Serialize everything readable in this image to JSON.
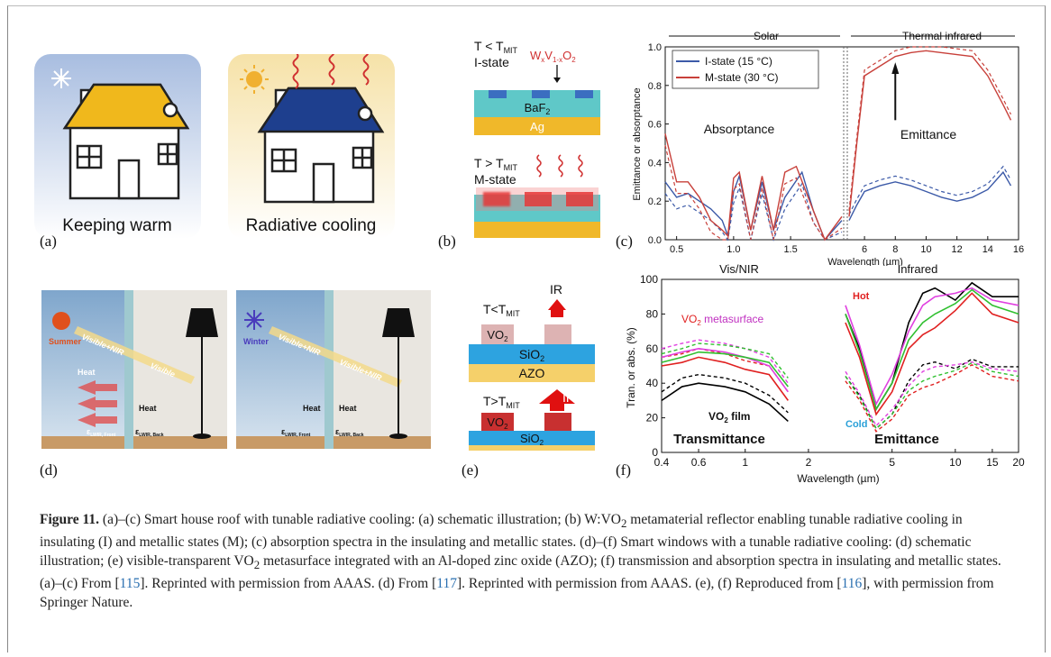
{
  "panels": {
    "a": {
      "label": "(a)",
      "title": "Keeping warm"
    },
    "a2": {
      "title": "Radiative cooling"
    },
    "b": {
      "label": "(b)",
      "top_condition": "T < T",
      "top_condition_sub": "MIT",
      "top_state": "I-state",
      "material_main": "W",
      "material_sub1": "x",
      "material_v": "V",
      "material_sub2": "1-x",
      "material_o": "O",
      "material_sub3": "2",
      "layer_baf": "BaF",
      "layer_baf_sub": "2",
      "layer_ag": "Ag",
      "bottom_condition": "T > T",
      "bottom_condition_sub": "MIT",
      "bottom_state": "M-state"
    },
    "c": {
      "label": "(c)",
      "region_solar": "Solar",
      "region_ir": "Thermal infrared",
      "legend_i": "I-state   (15 °C)",
      "legend_m": "M-state (30 °C)",
      "text_absorptance": "Absorptance",
      "text_emittance": "Emittance",
      "ylabel": "Emittance or absorptance",
      "xlabel": "Wavelength (µm)"
    },
    "d": {
      "label": "(d)",
      "summer": "Summer",
      "winter": "Winter",
      "visnir": "Visible+NIR",
      "visible": "Visible",
      "heat": "Heat",
      "lwir_front": "LWIR, Front",
      "lwir_back": "LWIR, Back",
      "eps": "ε"
    },
    "e": {
      "label": "(e)",
      "top_cond": "T<T",
      "top_cond_sub": "MIT",
      "ir": "IR",
      "vo2": "VO",
      "vo2_sub": "2",
      "sio2": "SiO",
      "sio2_sub": "2",
      "azo": "AZO",
      "bottom_cond": "T>T",
      "bottom_cond_sub": "MIT"
    },
    "f": {
      "label": "(f)",
      "region_vis": "Vis/NIR",
      "region_ir": "Infrared",
      "hot": "Hot",
      "cold": "Cold",
      "meta_label_vo": "VO",
      "meta_label_sub": "2",
      "meta_label_rest": " metasurface",
      "film_label": "VO",
      "film_sub": "2",
      "film_rest": " film",
      "transmittance": "Transmittance",
      "emittance": "Emittance",
      "ylabel": "Tran. or abs.  (%)",
      "xlabel": "Wavelength (µm)"
    }
  },
  "caption": {
    "fig": "Figure 11.",
    "text1": " (a)–(c) Smart house roof with tunable radiative cooling: (a) schematic illustration; (b) W:VO",
    "sub1": "2",
    "text2": " metamaterial reflector enabling tunable radiative cooling in insulating (I) and metallic states (M); (c) absorption spectra in the insulating and metallic states. (d)–(f) Smart windows with a tunable radiative cooling: (d) schematic illustration; (e) visible-transparent VO",
    "sub2": "2",
    "text3": " metasurface integrated with an Al-doped zinc oxide (AZO); (f) transmission and absorption spectra in insulating and metallic states. (a)–(c) From [",
    "ref1": "115",
    "text4": "]. Reprinted with permission from AAAS. (d) From [",
    "ref2": "117",
    "text5": "]. Reprinted with permission from AAAS. (e), (f) Reproduced from [",
    "ref3": "116",
    "text6": "], with permission from Springer Nature."
  },
  "chart_data": [
    {
      "type": "line",
      "panel": "c",
      "x_segments": [
        {
          "range": [
            0.4,
            1.95
          ],
          "ticks": [
            0.5,
            1.0,
            1.5
          ]
        },
        {
          "range": [
            5.0,
            16.0
          ],
          "ticks": [
            6,
            8,
            10,
            12,
            14,
            16
          ]
        }
      ],
      "ylim": [
        0,
        1.0
      ],
      "yticks": [
        0.0,
        0.2,
        0.4,
        0.6,
        0.8,
        1.0
      ],
      "xlabel": "Wavelength (µm)",
      "ylabel": "Emittance or absorptance",
      "legend": "top-left",
      "series": [
        {
          "name": "I-state   (15 °C)",
          "color": "#3c5aa8",
          "solar": [
            [
              0.4,
              0.3
            ],
            [
              0.5,
              0.22
            ],
            [
              0.6,
              0.24
            ],
            [
              0.7,
              0.2
            ],
            [
              0.8,
              0.16
            ],
            [
              0.9,
              0.1
            ],
            [
              0.95,
              0.02
            ],
            [
              1.0,
              0.25
            ],
            [
              1.05,
              0.33
            ],
            [
              1.15,
              0.05
            ],
            [
              1.25,
              0.3
            ],
            [
              1.35,
              0.05
            ],
            [
              1.45,
              0.22
            ],
            [
              1.6,
              0.35
            ],
            [
              1.7,
              0.15
            ],
            [
              1.8,
              0.0
            ],
            [
              1.95,
              0.1
            ]
          ],
          "ir": [
            [
              5.0,
              0.1
            ],
            [
              5.5,
              0.18
            ],
            [
              6,
              0.25
            ],
            [
              7,
              0.28
            ],
            [
              8,
              0.3
            ],
            [
              9,
              0.28
            ],
            [
              10,
              0.25
            ],
            [
              11,
              0.22
            ],
            [
              12,
              0.2
            ],
            [
              13,
              0.22
            ],
            [
              14,
              0.26
            ],
            [
              15,
              0.35
            ],
            [
              15.5,
              0.28
            ]
          ]
        },
        {
          "name": "M-state (30 °C)",
          "color": "#c8403a",
          "solar": [
            [
              0.4,
              0.55
            ],
            [
              0.5,
              0.3
            ],
            [
              0.6,
              0.3
            ],
            [
              0.7,
              0.22
            ],
            [
              0.8,
              0.1
            ],
            [
              0.9,
              0.05
            ],
            [
              0.95,
              0.02
            ],
            [
              1.0,
              0.32
            ],
            [
              1.05,
              0.35
            ],
            [
              1.15,
              0.05
            ],
            [
              1.25,
              0.33
            ],
            [
              1.35,
              0.05
            ],
            [
              1.45,
              0.35
            ],
            [
              1.55,
              0.38
            ],
            [
              1.7,
              0.15
            ],
            [
              1.8,
              0.0
            ],
            [
              1.95,
              0.12
            ]
          ],
          "ir": [
            [
              5.0,
              0.12
            ],
            [
              5.5,
              0.5
            ],
            [
              6,
              0.85
            ],
            [
              7,
              0.9
            ],
            [
              8,
              0.95
            ],
            [
              9,
              0.97
            ],
            [
              10,
              0.98
            ],
            [
              11,
              0.97
            ],
            [
              12,
              0.96
            ],
            [
              13,
              0.95
            ],
            [
              14,
              0.85
            ],
            [
              15,
              0.7
            ],
            [
              15.5,
              0.62
            ]
          ]
        }
      ]
    },
    {
      "type": "line",
      "panel": "f",
      "xscale": "log",
      "xlim": [
        0.4,
        20
      ],
      "xticks": [
        0.4,
        0.6,
        1,
        2,
        5,
        10,
        15,
        20
      ],
      "ylim": [
        0,
        100
      ],
      "yticks": [
        0,
        20,
        40,
        60,
        80,
        100
      ],
      "xlabel": "Wavelength (µm)",
      "ylabel": "Tran. or abs.  (%)",
      "series": [
        {
          "name": "VO2 film",
          "color": "#000000",
          "vis": [
            [
              0.4,
              30
            ],
            [
              0.5,
              38
            ],
            [
              0.6,
              40
            ],
            [
              0.8,
              38
            ],
            [
              1,
              35
            ],
            [
              1.3,
              28
            ],
            [
              1.6,
              18
            ]
          ],
          "ir": [
            [
              3,
              80
            ],
            [
              3.5,
              60
            ],
            [
              4.2,
              25
            ],
            [
              5,
              40
            ],
            [
              6,
              75
            ],
            [
              7,
              92
            ],
            [
              8,
              95
            ],
            [
              10,
              88
            ],
            [
              12,
              98
            ],
            [
              15,
              90
            ],
            [
              20,
              90
            ]
          ]
        },
        {
          "name": "VO2 metasurface (red)",
          "color": "#e02020",
          "vis": [
            [
              0.4,
              50
            ],
            [
              0.5,
              52
            ],
            [
              0.6,
              55
            ],
            [
              0.8,
              52
            ],
            [
              1,
              48
            ],
            [
              1.3,
              45
            ],
            [
              1.6,
              30
            ]
          ],
          "ir": [
            [
              3,
              75
            ],
            [
              3.5,
              55
            ],
            [
              4.2,
              22
            ],
            [
              5,
              35
            ],
            [
              6,
              60
            ],
            [
              7,
              68
            ],
            [
              8,
              72
            ],
            [
              10,
              82
            ],
            [
              12,
              92
            ],
            [
              15,
              80
            ],
            [
              20,
              75
            ]
          ]
        },
        {
          "name": "VO2 metasurface (magenta)",
          "color": "#e040e0",
          "vis": [
            [
              0.4,
              55
            ],
            [
              0.5,
              58
            ],
            [
              0.6,
              60
            ],
            [
              0.8,
              58
            ],
            [
              1,
              55
            ],
            [
              1.3,
              50
            ],
            [
              1.6,
              35
            ]
          ],
          "ir": [
            [
              3,
              85
            ],
            [
              3.5,
              62
            ],
            [
              4.2,
              28
            ],
            [
              5,
              45
            ],
            [
              6,
              70
            ],
            [
              7,
              85
            ],
            [
              8,
              90
            ],
            [
              10,
              92
            ],
            [
              12,
              95
            ],
            [
              15,
              88
            ],
            [
              20,
              85
            ]
          ]
        },
        {
          "name": "VO2 metasurface (green)",
          "color": "#30c030",
          "vis": [
            [
              0.4,
              52
            ],
            [
              0.5,
              55
            ],
            [
              0.6,
              58
            ],
            [
              0.8,
              57
            ],
            [
              1,
              55
            ],
            [
              1.3,
              52
            ],
            [
              1.6,
              38
            ]
          ],
          "ir": [
            [
              3,
              80
            ],
            [
              3.5,
              58
            ],
            [
              4.2,
              25
            ],
            [
              5,
              40
            ],
            [
              6,
              65
            ],
            [
              7,
              75
            ],
            [
              8,
              80
            ],
            [
              10,
              86
            ],
            [
              12,
              94
            ],
            [
              15,
              85
            ],
            [
              20,
              80
            ]
          ]
        }
      ]
    }
  ]
}
